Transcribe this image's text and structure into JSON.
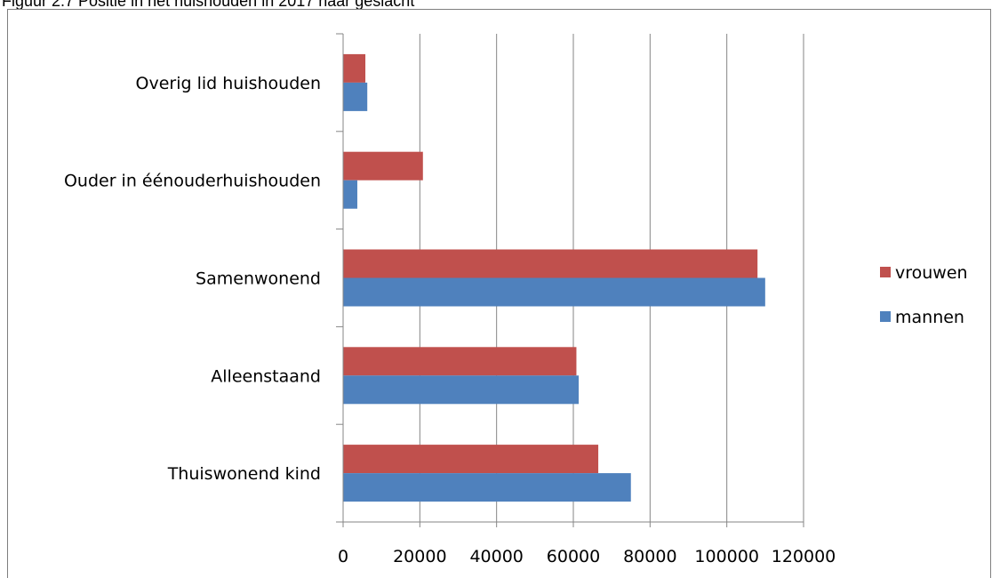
{
  "title": "Figuur 2.7 Positie in het huishouden in 2017 naar geslacht",
  "chart_data": {
    "type": "bar",
    "orientation": "horizontal",
    "categories": [
      "Overig lid huishouden",
      "Ouder in éénouderhuishouden",
      "Samenwonend",
      "Alleenstaand",
      "Thuiswonend kind"
    ],
    "series": [
      {
        "name": "vrouwen",
        "color": "#c0504d",
        "values": [
          5800,
          20800,
          108000,
          60800,
          66500
        ]
      },
      {
        "name": "mannen",
        "color": "#4f81bd",
        "values": [
          6300,
          3700,
          110000,
          61400,
          75000
        ]
      }
    ],
    "xlim": [
      0,
      120000
    ],
    "xticks": [
      "0",
      "20000",
      "40000",
      "60000",
      "80000",
      "100000",
      "120000"
    ],
    "xtick_values": [
      0,
      20000,
      40000,
      60000,
      80000,
      100000,
      120000
    ],
    "grid": true,
    "legend_position": "right"
  }
}
